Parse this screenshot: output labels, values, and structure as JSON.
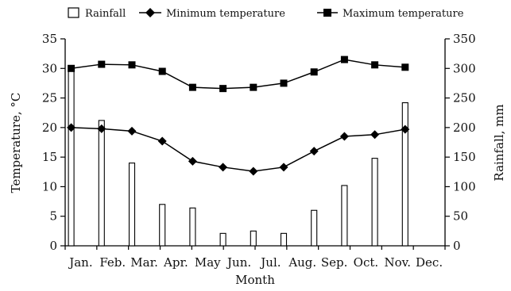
{
  "chart_data": {
    "type": "bar+line",
    "categories": [
      "Jan.",
      "Feb.",
      "Mar.",
      "Apr.",
      "May",
      "Jun.",
      "Jul.",
      "Aug.",
      "Sep.",
      "Oct.",
      "Nov.",
      "Dec."
    ],
    "xlabel": "Month",
    "ylabel_left": "Temperature, °C",
    "ylabel_right": "Rainfall, mm",
    "ylim_left": [
      0,
      35
    ],
    "yticks_left": [
      0,
      5,
      10,
      15,
      20,
      25,
      30,
      35
    ],
    "ylim_right": [
      0,
      350
    ],
    "yticks_right": [
      0,
      50,
      100,
      150,
      200,
      250,
      300,
      350
    ],
    "grid": false,
    "legend_position": "top",
    "series": [
      {
        "name": "Rainfall",
        "type": "bar",
        "axis": "right",
        "color": "#ffffff",
        "values": [
          300,
          212,
          140,
          70,
          64,
          21,
          25,
          21,
          60,
          102,
          148,
          242
        ]
      },
      {
        "name": "Minimum temperature",
        "type": "line",
        "axis": "left",
        "marker": "diamond",
        "color": "#000000",
        "values": [
          20.0,
          19.8,
          19.4,
          17.7,
          14.3,
          13.3,
          12.6,
          13.3,
          16.0,
          18.5,
          18.8,
          19.7
        ]
      },
      {
        "name": "Maximum temperature",
        "type": "line",
        "axis": "left",
        "marker": "square",
        "color": "#000000",
        "values": [
          30.0,
          30.7,
          30.6,
          29.5,
          26.8,
          26.6,
          26.8,
          27.5,
          29.4,
          31.5,
          30.6,
          30.2
        ]
      }
    ]
  }
}
